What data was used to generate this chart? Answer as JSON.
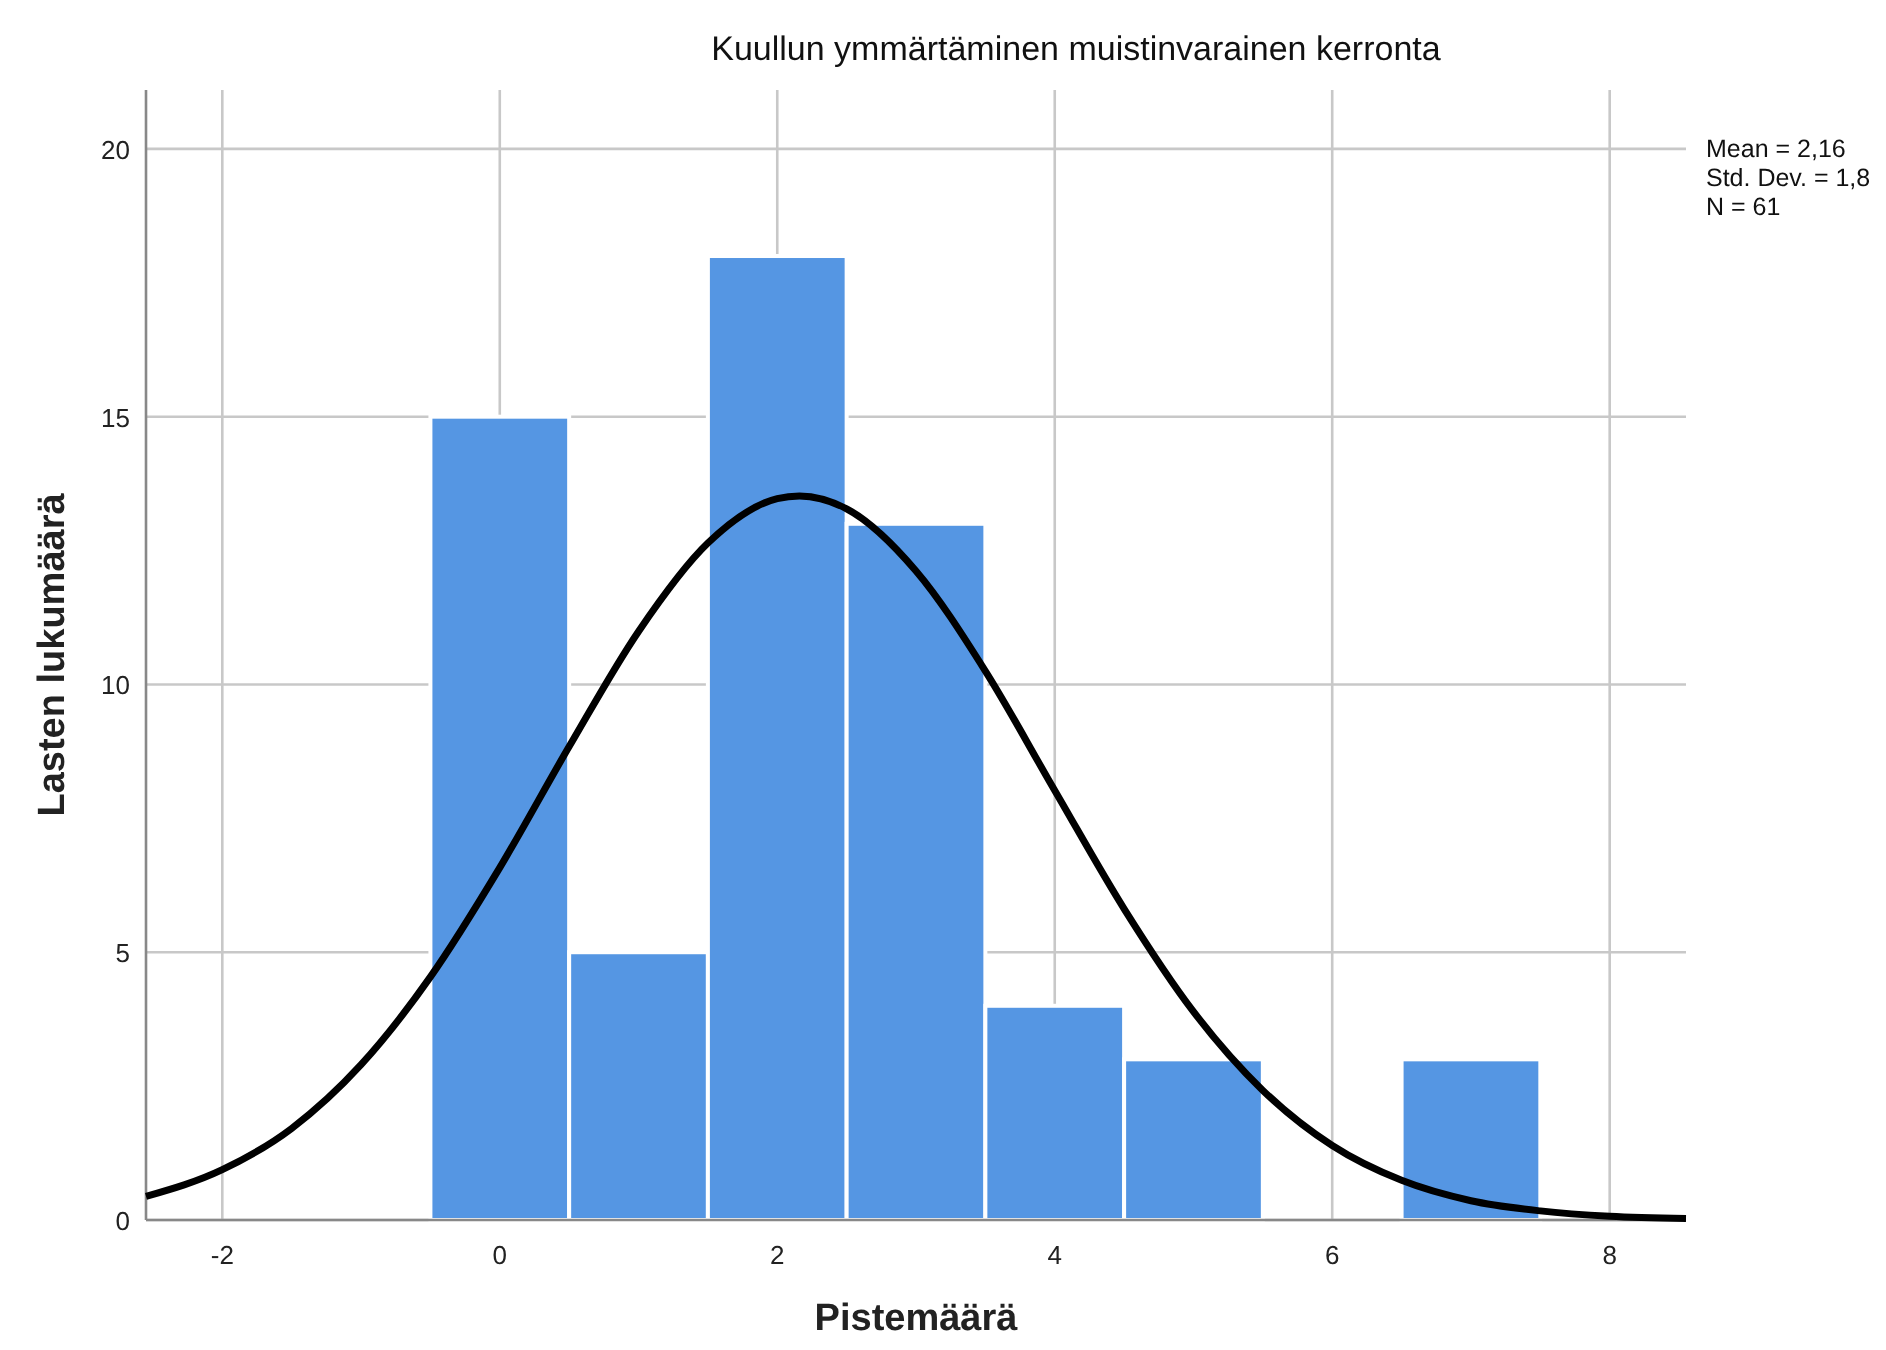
{
  "chart_data": {
    "type": "histogram",
    "title": "Kuullun ymmärtäminen muistinvarainen kerronta",
    "xlabel": "Pistemäärä",
    "ylabel": "Lasten lukumäärä",
    "bins": [
      -0.5,
      0.5,
      1.5,
      2.5,
      3.5,
      4.5,
      5.5,
      6.5,
      7.5
    ],
    "values": [
      15,
      5,
      18,
      13,
      4,
      3,
      0,
      3
    ],
    "color": "#5596e3",
    "series": [
      {
        "type": "line",
        "color": "#000000",
        "x": [
          -2.55,
          -2,
          -1.5,
          -1,
          -0.5,
          0,
          0.5,
          1,
          1.5,
          2,
          2.16,
          2.5,
          3,
          3.5,
          4,
          4.5,
          5,
          5.5,
          6,
          6.5,
          7,
          7.5,
          8,
          8.55
        ],
        "values": [
          0.44,
          0.94,
          1.71,
          2.9,
          4.54,
          6.58,
          8.84,
          10.99,
          12.64,
          13.47,
          13.52,
          13.28,
          12.12,
          10.25,
          8.02,
          5.81,
          3.89,
          2.42,
          1.39,
          0.74,
          0.36,
          0.17,
          0.07,
          0.03
        ]
      }
    ],
    "xlim": [
      -2.55,
      8.55
    ],
    "xticks": [
      -2,
      0,
      2,
      4,
      6,
      8
    ],
    "ylim": [
      0,
      21.1
    ],
    "yticks": [
      0,
      5,
      10,
      15,
      20
    ],
    "grid": true,
    "marker": "none",
    "line_style": "solid",
    "annotations": [
      "Mean = 2,16",
      "Std. Dev. = 1,8",
      "N = 61"
    ]
  }
}
